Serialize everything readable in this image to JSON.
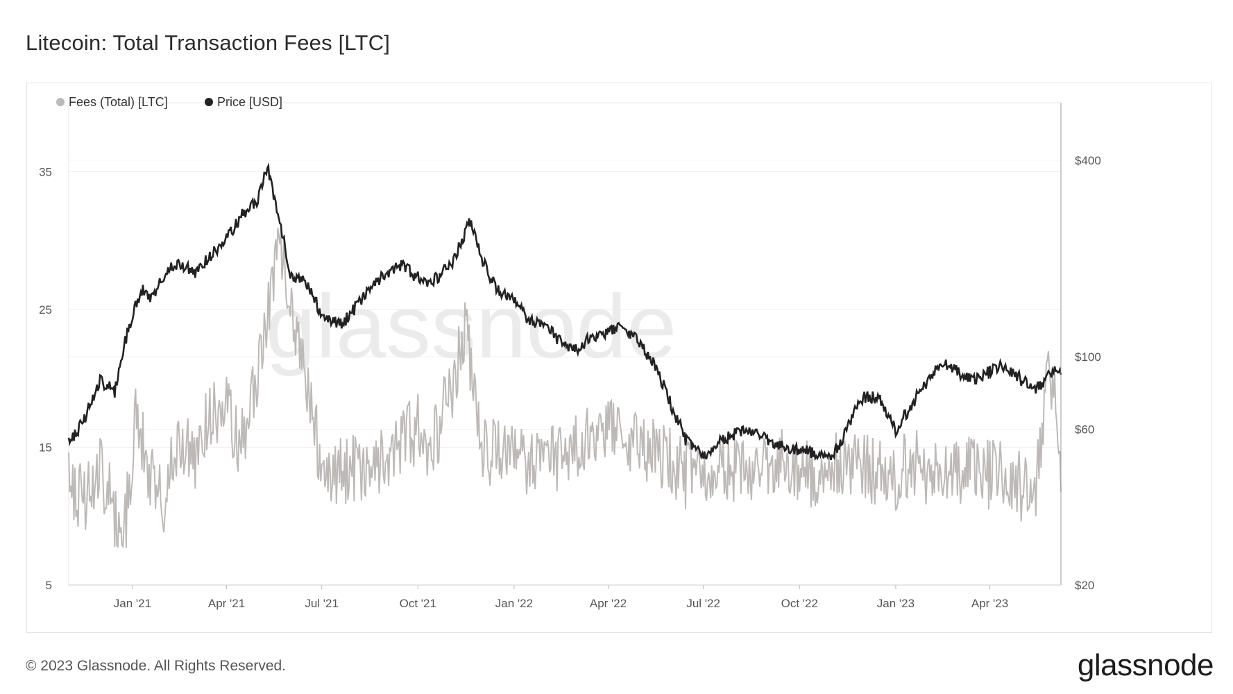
{
  "title": "Litecoin: Total Transaction Fees [LTC]",
  "footer": {
    "copyright": "© 2023 Glassnode. All Rights Reserved.",
    "brand": "glassnode"
  },
  "watermark": "glassnode",
  "colors": {
    "fees": "#bdb9b7",
    "price": "#222222",
    "grid": "#ececec"
  },
  "chart_data": {
    "type": "line",
    "title": "Litecoin: Total Transaction Fees [LTC]",
    "legend": {
      "placement": "top-left"
    },
    "grid": true,
    "x_ticks": [
      "Jan '21",
      "Apr '21",
      "Jul '21",
      "Oct '21",
      "Jan '22",
      "Apr '22",
      "Jul '22",
      "Oct '22",
      "Jan '23",
      "Apr '23"
    ],
    "x_range": [
      "2020-11-01",
      "2023-06-08"
    ],
    "y_left": {
      "range": [
        5,
        40
      ],
      "ticks": [
        5,
        15,
        25,
        35
      ]
    },
    "y_right": {
      "scale": "log",
      "range": [
        20,
        600
      ],
      "ticks": [
        20,
        60,
        100,
        400
      ],
      "tick_labels": [
        "$20",
        "$60",
        "$100",
        "$400"
      ]
    },
    "series": [
      {
        "name": "Fees (Total) [LTC]",
        "axis": "left",
        "color": "#bdb9b7",
        "x": [
          "2020-11-01",
          "2020-11-15",
          "2020-11-30",
          "2020-12-15",
          "2020-12-25",
          "2021-01-05",
          "2021-01-15",
          "2021-01-31",
          "2021-02-15",
          "2021-03-01",
          "2021-03-15",
          "2021-04-01",
          "2021-04-15",
          "2021-05-01",
          "2021-05-10",
          "2021-05-20",
          "2021-05-31",
          "2021-06-15",
          "2021-07-01",
          "2021-07-15",
          "2021-08-01",
          "2021-08-15",
          "2021-09-01",
          "2021-09-15",
          "2021-10-01",
          "2021-10-15",
          "2021-11-01",
          "2021-11-15",
          "2021-12-01",
          "2021-12-15",
          "2022-01-01",
          "2022-01-15",
          "2022-02-01",
          "2022-02-15",
          "2022-03-01",
          "2022-03-15",
          "2022-04-01",
          "2022-04-15",
          "2022-05-01",
          "2022-05-15",
          "2022-06-01",
          "2022-06-15",
          "2022-07-01",
          "2022-07-15",
          "2022-08-01",
          "2022-08-15",
          "2022-09-01",
          "2022-09-15",
          "2022-10-01",
          "2022-10-15",
          "2022-11-01",
          "2022-11-15",
          "2022-12-01",
          "2022-12-15",
          "2023-01-01",
          "2023-01-15",
          "2023-02-01",
          "2023-02-15",
          "2023-03-01",
          "2023-03-15",
          "2023-04-01",
          "2023-04-15",
          "2023-05-01",
          "2023-05-15",
          "2023-05-25",
          "2023-06-01",
          "2023-06-08"
        ],
        "values": [
          13,
          11,
          14,
          10,
          9.5,
          18,
          13,
          11,
          16,
          14,
          17,
          18,
          15,
          20,
          24,
          30,
          27,
          20,
          14,
          13,
          13.5,
          13,
          14,
          15,
          16.5,
          15,
          19,
          24,
          15,
          14.5,
          15,
          14,
          15,
          14,
          15,
          16,
          17,
          16,
          15,
          15,
          14,
          13,
          13.5,
          14,
          13,
          13.5,
          13,
          14,
          13.5,
          13,
          14,
          13.5,
          13.5,
          13,
          13,
          14,
          13,
          12.5,
          13,
          14,
          13,
          13.5,
          12,
          12,
          20,
          19,
          13
        ]
      },
      {
        "name": "Price [USD]",
        "axis": "right",
        "color": "#222222",
        "x": [
          "2020-11-01",
          "2020-11-15",
          "2020-12-01",
          "2020-12-15",
          "2021-01-01",
          "2021-01-10",
          "2021-01-20",
          "2021-02-01",
          "2021-02-15",
          "2021-03-01",
          "2021-03-15",
          "2021-04-01",
          "2021-04-15",
          "2021-05-01",
          "2021-05-10",
          "2021-05-20",
          "2021-06-01",
          "2021-06-15",
          "2021-07-01",
          "2021-07-20",
          "2021-08-01",
          "2021-08-15",
          "2021-09-01",
          "2021-09-15",
          "2021-10-01",
          "2021-10-15",
          "2021-11-01",
          "2021-11-10",
          "2021-11-20",
          "2021-12-01",
          "2021-12-15",
          "2022-01-01",
          "2022-01-15",
          "2022-02-01",
          "2022-02-15",
          "2022-03-01",
          "2022-03-15",
          "2022-04-01",
          "2022-04-15",
          "2022-05-01",
          "2022-05-15",
          "2022-06-01",
          "2022-06-15",
          "2022-07-01",
          "2022-07-15",
          "2022-08-01",
          "2022-08-15",
          "2022-09-01",
          "2022-09-15",
          "2022-10-01",
          "2022-10-15",
          "2022-11-01",
          "2022-11-10",
          "2022-11-20",
          "2022-12-01",
          "2022-12-15",
          "2023-01-01",
          "2023-01-15",
          "2023-02-01",
          "2023-02-15",
          "2023-03-01",
          "2023-03-15",
          "2023-04-01",
          "2023-04-15",
          "2023-05-01",
          "2023-05-15",
          "2023-06-01",
          "2023-06-08"
        ],
        "values": [
          55,
          63,
          85,
          78,
          135,
          160,
          150,
          180,
          195,
          180,
          200,
          230,
          270,
          300,
          380,
          270,
          180,
          170,
          135,
          125,
          140,
          160,
          180,
          190,
          175,
          170,
          190,
          220,
          260,
          200,
          160,
          150,
          130,
          125,
          110,
          105,
          115,
          120,
          125,
          110,
          95,
          70,
          55,
          50,
          55,
          58,
          60,
          55,
          53,
          52,
          51,
          50,
          55,
          65,
          75,
          75,
          60,
          70,
          85,
          95,
          90,
          85,
          90,
          95,
          85,
          80,
          90,
          90
        ]
      }
    ]
  }
}
